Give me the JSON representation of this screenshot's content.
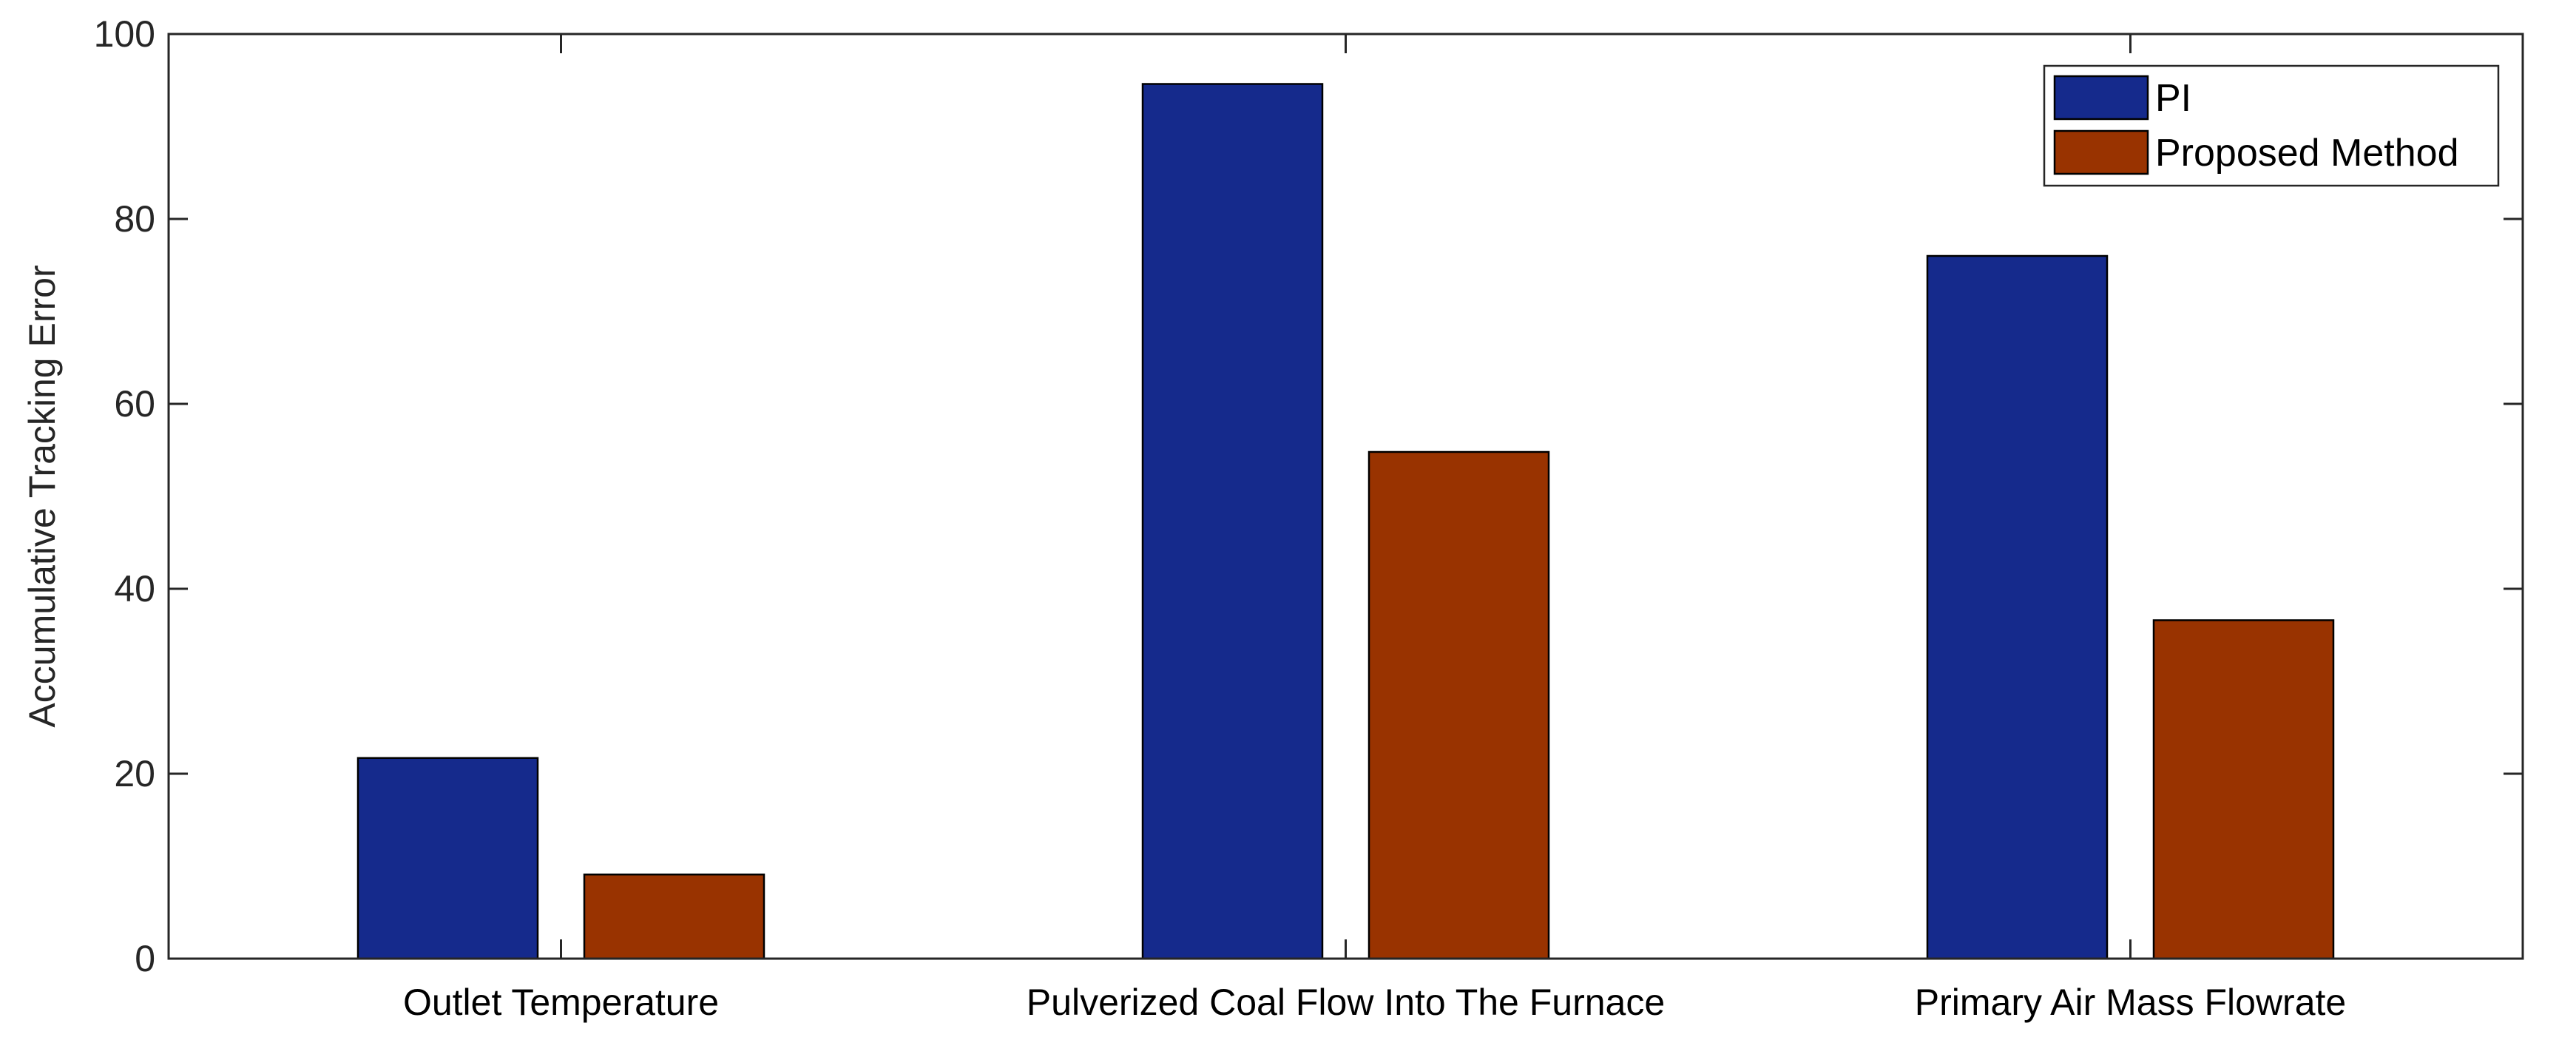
{
  "chart_data": {
    "type": "bar",
    "title": "",
    "xlabel": "",
    "ylabel": "Accumulative Tracking Error",
    "ylim": [
      0,
      100
    ],
    "yticks": [
      0,
      20,
      40,
      60,
      80,
      100
    ],
    "grid": false,
    "legend_position": "top-right",
    "categories": [
      "Outlet Temperature",
      "Pulverized Coal Flow Into The Furnace",
      "Primary Air Mass Flowrate"
    ],
    "series": [
      {
        "name": "PI",
        "color": "#152A8C",
        "values": [
          21.7,
          94.6,
          76.0
        ]
      },
      {
        "name": "Proposed Method",
        "color": "#993300",
        "values": [
          9.1,
          54.8,
          36.6
        ]
      }
    ]
  }
}
